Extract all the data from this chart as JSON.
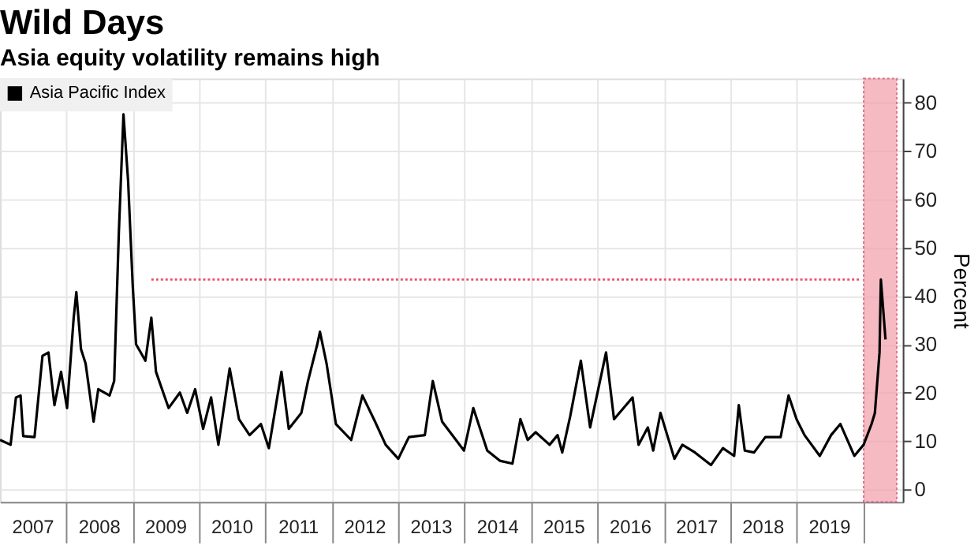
{
  "chart_data": {
    "type": "line",
    "title": "Wild Days",
    "subtitle": "Asia equity volatility remains high",
    "ylabel": "Percent",
    "xlim": [
      2007,
      2020.6
    ],
    "ylim": [
      -2.6,
      85
    ],
    "xticks": [
      {
        "value": 2007.5,
        "label": "2007"
      },
      {
        "value": 2008,
        "label": null
      },
      {
        "value": 2008.5,
        "label": "2008"
      },
      {
        "value": 2009,
        "label": null
      },
      {
        "value": 2009.5,
        "label": "2009"
      },
      {
        "value": 2010,
        "label": null
      },
      {
        "value": 2010.5,
        "label": "2010"
      },
      {
        "value": 2011,
        "label": null
      },
      {
        "value": 2011.5,
        "label": "2011"
      },
      {
        "value": 2012,
        "label": null
      },
      {
        "value": 2012.5,
        "label": "2012"
      },
      {
        "value": 2013,
        "label": null
      },
      {
        "value": 2013.5,
        "label": "2013"
      },
      {
        "value": 2014,
        "label": null
      },
      {
        "value": 2014.5,
        "label": "2014"
      },
      {
        "value": 2015,
        "label": null
      },
      {
        "value": 2015.5,
        "label": "2015"
      },
      {
        "value": 2016,
        "label": null
      },
      {
        "value": 2016.5,
        "label": "2016"
      },
      {
        "value": 2017,
        "label": null
      },
      {
        "value": 2017.5,
        "label": "2017"
      },
      {
        "value": 2018,
        "label": null
      },
      {
        "value": 2018.5,
        "label": "2018"
      },
      {
        "value": 2019,
        "label": null
      },
      {
        "value": 2019.5,
        "label": "2019"
      },
      {
        "value": 2020,
        "label": null
      }
    ],
    "yticks": [
      0,
      10,
      20,
      30,
      40,
      50,
      60,
      70,
      80
    ],
    "grid": true,
    "legend": "top left",
    "bands": [
      {
        "axis": "x",
        "from": 2020.01,
        "to": 2020.51,
        "color": "#f4a3b0"
      }
    ],
    "series": [
      {
        "name": "Asia Pacific Index",
        "color": "#000000",
        "x": [
          2007.0,
          2007.16,
          2007.24,
          2007.31,
          2007.35,
          2007.52,
          2007.64,
          2007.73,
          2007.82,
          2007.92,
          2008.01,
          2008.11,
          2008.15,
          2008.22,
          2008.29,
          2008.41,
          2008.48,
          2008.65,
          2008.72,
          2008.79,
          2008.86,
          2008.93,
          2009.0,
          2009.05,
          2009.19,
          2009.28,
          2009.35,
          2009.54,
          2009.71,
          2009.82,
          2009.94,
          2010.06,
          2010.18,
          2010.29,
          2010.46,
          2010.6,
          2010.76,
          2010.93,
          2011.05,
          2011.24,
          2011.35,
          2011.54,
          2011.64,
          2011.78,
          2011.82,
          2011.92,
          2012.06,
          2012.29,
          2012.46,
          2012.65,
          2012.81,
          2013.0,
          2013.16,
          2013.4,
          2013.52,
          2013.66,
          2013.99,
          2014.13,
          2014.34,
          2014.53,
          2014.72,
          2014.84,
          2014.95,
          2015.07,
          2015.28,
          2015.4,
          2015.47,
          2015.59,
          2015.75,
          2015.89,
          2016.13,
          2016.25,
          2016.53,
          2016.62,
          2016.76,
          2016.84,
          2016.95,
          2017.16,
          2017.28,
          2017.47,
          2017.71,
          2017.89,
          2018.06,
          2018.13,
          2018.22,
          2018.36,
          2018.53,
          2018.76,
          2018.88,
          2019.0,
          2019.12,
          2019.35,
          2019.52,
          2019.66,
          2019.87,
          2020.01,
          2020.13,
          2020.18,
          2020.25,
          2020.27,
          2020.34
        ],
        "values": [
          10.2,
          9.2,
          19,
          19.4,
          11,
          10.8,
          27.6,
          28.3,
          17.4,
          24.3,
          16.8,
          35.5,
          40.8,
          29,
          26,
          14,
          20.7,
          19.4,
          22.4,
          53,
          77.6,
          63.8,
          42,
          30,
          26.6,
          35.5,
          24.3,
          16.8,
          20,
          15.8,
          20.7,
          12.5,
          19,
          9.2,
          25,
          14.5,
          11.2,
          13.5,
          8.5,
          24.3,
          12.5,
          15.8,
          22.4,
          30,
          32.6,
          26,
          13.5,
          10.2,
          19.4,
          14,
          9.2,
          6.3,
          10.8,
          11.2,
          22.4,
          14,
          8,
          16.8,
          8,
          5.9,
          5.3,
          14.5,
          10.2,
          11.8,
          9.2,
          11.2,
          7.6,
          15.1,
          26.6,
          12.8,
          28.3,
          14.5,
          19,
          9.2,
          12.8,
          8,
          15.8,
          6.3,
          9.2,
          7.6,
          5,
          8.5,
          6.9,
          17.4,
          8,
          7.6,
          10.8,
          10.8,
          19.4,
          14.5,
          11.2,
          6.9,
          11.2,
          13.5,
          6.9,
          9.2,
          13.5,
          15.8,
          28.3,
          43.4,
          31
        ]
      },
      {
        "color": "#e8546c",
        "line_style": "dotted",
        "x": [
          2009.28,
          2019.97
        ],
        "values": [
          43.4,
          43.4
        ]
      }
    ]
  }
}
